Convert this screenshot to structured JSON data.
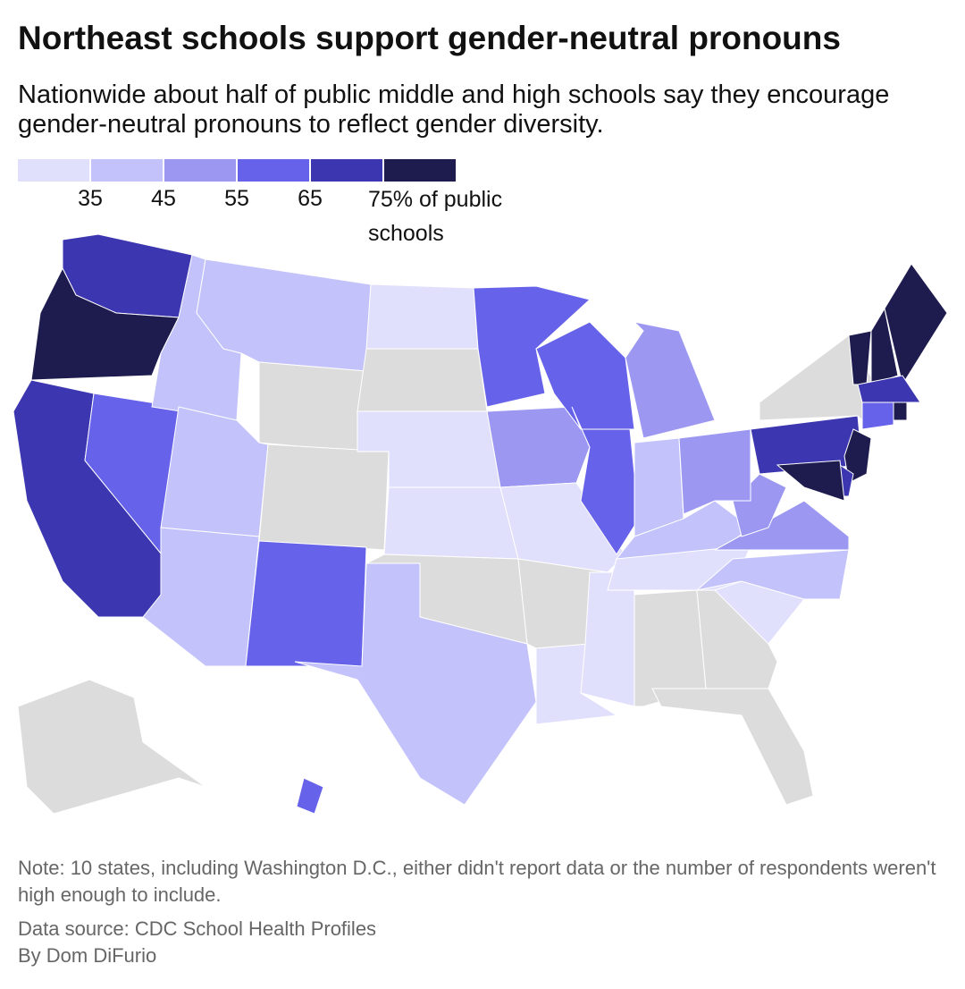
{
  "chart_data": {
    "type": "choropleth",
    "title": "Northeast schools support gender-neutral pronouns",
    "subtitle": "Nationwide about half of public middle and high schools say they encourage gender-neutral pronouns to reflect gender diversity.",
    "legend": {
      "colors": [
        "#e1e0fc",
        "#c3c2fb",
        "#9c98f2",
        "#6762ea",
        "#3c36b1",
        "#1e1b4f"
      ],
      "breaks": [
        35,
        45,
        55,
        65,
        {
          "value": 75,
          "label": "75% of public schools"
        }
      ]
    },
    "missing_color": "#dcdcdc",
    "values": [
      70,
      80,
      70,
      60,
      40,
      40,
      null,
      40,
      40,
      null,
      60,
      30,
      null,
      30,
      30,
      null,
      40,
      60,
      50,
      30,
      null,
      30,
      60,
      60,
      30,
      50,
      40,
      40,
      30,
      null,
      null,
      null,
      30,
      40,
      50,
      50,
      50,
      70,
      null,
      80,
      80,
      80,
      70,
      80,
      60,
      80,
      70,
      80,
      null,
      60
    ],
    "note": "Note: 10 states, including Washington D.C., either didn't report data or the number of respondents weren't high enough to include.",
    "source": "Data source: CDC School Health Profiles",
    "byline": "By Dom DiFurio"
  }
}
